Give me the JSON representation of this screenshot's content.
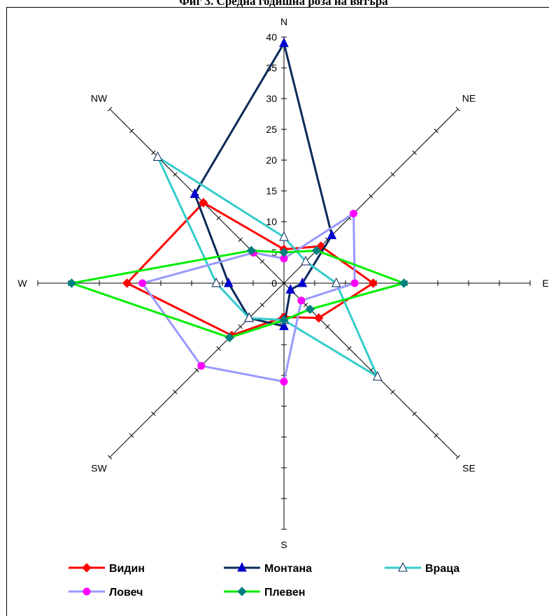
{
  "chart_data": {
    "type": "radar",
    "title": "Фиг 3. Средна годишна роза на вятъра",
    "directions": [
      "N",
      "NE",
      "E",
      "SE",
      "S",
      "SW",
      "W",
      "NW"
    ],
    "direction_labels": [
      "N",
      "NE",
      "E",
      "SE",
      "S",
      "SW",
      "W",
      "NW"
    ],
    "radial_ticks": [
      0,
      5,
      10,
      15,
      20,
      25,
      30,
      35,
      40
    ],
    "rmax": 40,
    "grid": false,
    "legend_position": "bottom",
    "series": [
      {
        "name": "Видин",
        "color": "#ff0000",
        "marker": "diamond",
        "values": [
          5.5,
          8.5,
          14.5,
          8,
          5.5,
          12,
          25.5,
          18.5
        ]
      },
      {
        "name": "Монтана",
        "color": "#0b2a5a",
        "marker": "triangle",
        "markerColor": "#0000cc",
        "values": [
          39,
          11,
          3,
          1.5,
          7,
          8,
          9,
          20.5
        ]
      },
      {
        "name": "Враца",
        "color": "#33cccc",
        "marker": "triangle-open",
        "values": [
          7.5,
          5,
          8.5,
          21.5,
          6,
          8,
          11,
          29
        ]
      },
      {
        "name": "Ловеч",
        "color": "#9999ff",
        "marker": "circle",
        "markerColor": "#ff00ff",
        "values": [
          4,
          16,
          11.5,
          4,
          16,
          19,
          23,
          7
        ]
      },
      {
        "name": "Плевен",
        "color": "#00ee00",
        "marker": "diamond",
        "markerColor": "#008080",
        "values": [
          5,
          7.5,
          19.5,
          6,
          6,
          12.5,
          34.5,
          7.5
        ]
      }
    ]
  }
}
